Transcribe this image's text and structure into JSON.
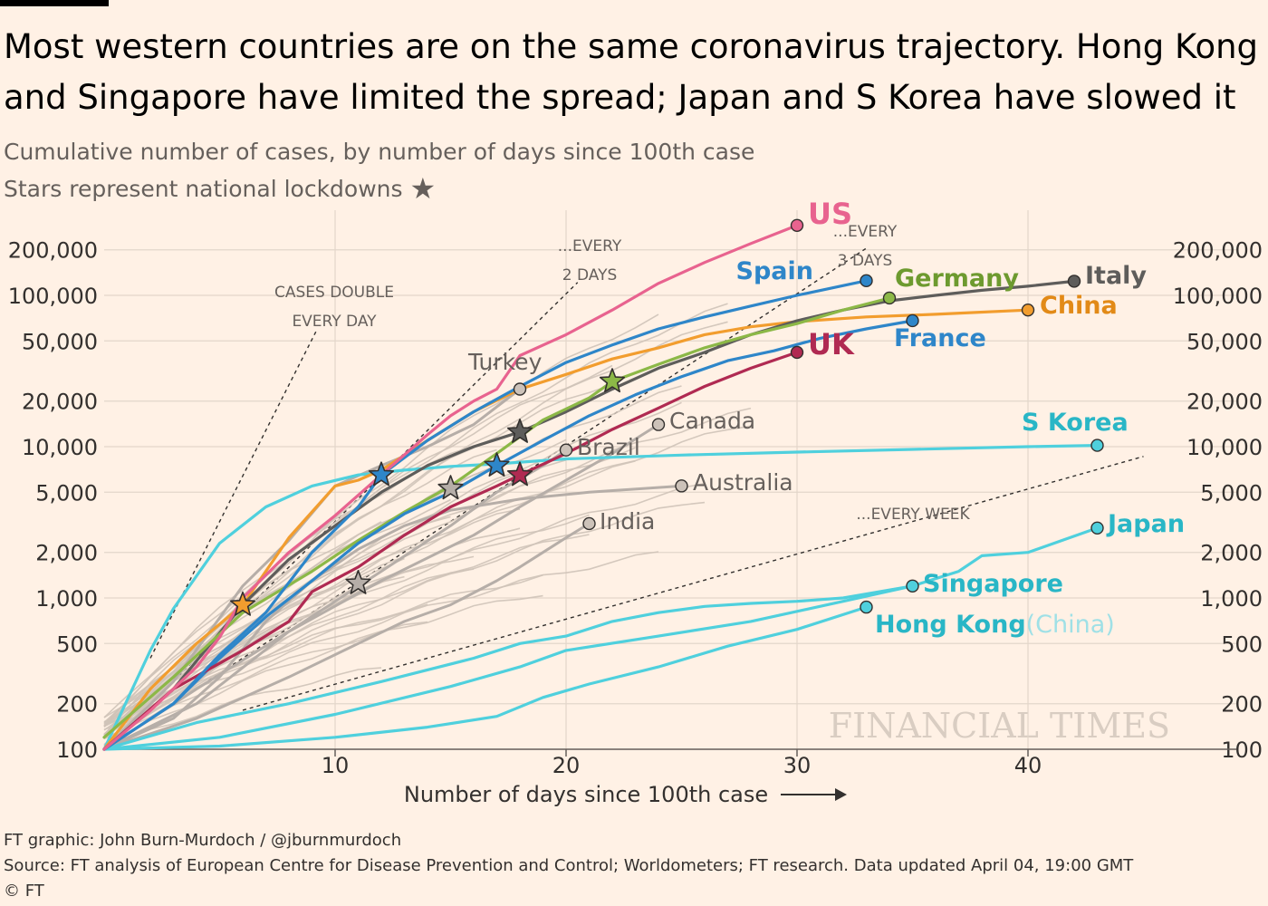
{
  "title": "Most western countries are on the same coronavirus trajectory. Hong Kong and Singapore have limited the spread; Japan and S Korea have slowed it",
  "subtitle": {
    "line1": "Cumulative number of cases, by number of days since 100th case",
    "line2": "Stars represent national lockdowns"
  },
  "footer": {
    "credit": "FT graphic: John Burn-Murdoch / @jburnmurdoch",
    "source": "Source: FT analysis of European Centre for Disease Prevention and Control; Worldometers; FT research. Data updated April 04, 19:00 GMT",
    "copyright": "© FT"
  },
  "watermark": "FINANCIAL TIMES",
  "chart_data": {
    "type": "line",
    "title": "Most western countries are on the same coronavirus trajectory",
    "xlabel": "Number of days since 100th case",
    "ylabel": "Cumulative number of cases",
    "yscale": "log",
    "xlim": [
      0,
      47
    ],
    "ylim": [
      100,
      300000
    ],
    "xticks": [
      10,
      20,
      30,
      40
    ],
    "yticks": [
      100,
      200,
      500,
      1000,
      2000,
      5000,
      10000,
      20000,
      50000,
      100000,
      200000
    ],
    "ytick_labels": [
      "100",
      "200",
      "500",
      "1,000",
      "2,000",
      "5,000",
      "10,000",
      "20,000",
      "50,000",
      "100,000",
      "200,000"
    ],
    "reference_lines": [
      {
        "name": "CASES DOUBLE EVERY DAY",
        "label1": "CASES DOUBLE",
        "label2": "EVERY DAY",
        "doubling_days": 1
      },
      {
        "name": "EVERY 2 DAYS",
        "label1": "...EVERY",
        "label2": "2 DAYS",
        "doubling_days": 2
      },
      {
        "name": "EVERY 3 DAYS",
        "label1": "...EVERY",
        "label2": "3 DAYS",
        "doubling_days": 3
      },
      {
        "name": "EVERY WEEK",
        "label1": "...EVERY WEEK",
        "label2": "",
        "doubling_days": 7
      }
    ],
    "series": [
      {
        "name": "US",
        "label": "US",
        "color": "#e8638f",
        "end_marker": true,
        "points": [
          [
            0,
            100
          ],
          [
            2,
            180
          ],
          [
            4,
            350
          ],
          [
            5,
            550
          ],
          [
            6,
            1000
          ],
          [
            8,
            2000
          ],
          [
            10,
            3500
          ],
          [
            12,
            6500
          ],
          [
            14,
            12000
          ],
          [
            15,
            16000
          ],
          [
            16,
            20000
          ],
          [
            17,
            24000
          ],
          [
            18,
            40000
          ],
          [
            20,
            55000
          ],
          [
            22,
            80000
          ],
          [
            24,
            120000
          ],
          [
            26,
            165000
          ],
          [
            28,
            220000
          ],
          [
            30,
            290000
          ]
        ]
      },
      {
        "name": "Spain",
        "label": "Spain",
        "color": "#2e86c9",
        "end_marker": true,
        "points": [
          [
            0,
            100
          ],
          [
            3,
            200
          ],
          [
            5,
            420
          ],
          [
            7,
            800
          ],
          [
            9,
            2000
          ],
          [
            11,
            4000
          ],
          [
            12,
            6500
          ],
          [
            14,
            11000
          ],
          [
            16,
            17000
          ],
          [
            18,
            25000
          ],
          [
            20,
            36000
          ],
          [
            22,
            47000
          ],
          [
            24,
            60000
          ],
          [
            26,
            72000
          ],
          [
            28,
            85000
          ],
          [
            30,
            100000
          ],
          [
            33,
            125000
          ]
        ]
      },
      {
        "name": "Germany",
        "label": "Germany",
        "color": "#8cb847",
        "end_marker": true,
        "points": [
          [
            0,
            120
          ],
          [
            3,
            300
          ],
          [
            6,
            800
          ],
          [
            9,
            1500
          ],
          [
            11,
            2400
          ],
          [
            13,
            3700
          ],
          [
            15,
            5500
          ],
          [
            17,
            9000
          ],
          [
            19,
            15000
          ],
          [
            21,
            21000
          ],
          [
            22,
            27000
          ],
          [
            24,
            35000
          ],
          [
            26,
            45000
          ],
          [
            28,
            55000
          ],
          [
            30,
            65000
          ],
          [
            32,
            80000
          ],
          [
            34,
            96000
          ]
        ]
      },
      {
        "name": "Italy",
        "label": "Italy",
        "color": "#5e5d5b",
        "end_marker": true,
        "points": [
          [
            0,
            100
          ],
          [
            3,
            250
          ],
          [
            6,
            900
          ],
          [
            8,
            1800
          ],
          [
            10,
            3000
          ],
          [
            12,
            5000
          ],
          [
            14,
            7500
          ],
          [
            16,
            10000
          ],
          [
            18,
            12500
          ],
          [
            20,
            17000
          ],
          [
            22,
            24000
          ],
          [
            24,
            33000
          ],
          [
            26,
            42000
          ],
          [
            28,
            55000
          ],
          [
            30,
            68000
          ],
          [
            32,
            80000
          ],
          [
            34,
            92000
          ],
          [
            36,
            100000
          ],
          [
            38,
            108000
          ],
          [
            40,
            115000
          ],
          [
            42,
            124000
          ]
        ]
      },
      {
        "name": "China",
        "label": "China",
        "color": "#f29d2e",
        "end_marker": true,
        "points": [
          [
            0,
            100
          ],
          [
            2,
            250
          ],
          [
            4,
            500
          ],
          [
            6,
            900
          ],
          [
            8,
            2500
          ],
          [
            10,
            5500
          ],
          [
            11,
            6000
          ],
          [
            12,
            7000
          ],
          [
            14,
            11000
          ],
          [
            16,
            17000
          ],
          [
            18,
            24000
          ],
          [
            20,
            30000
          ],
          [
            22,
            38000
          ],
          [
            24,
            45000
          ],
          [
            26,
            55000
          ],
          [
            28,
            62000
          ],
          [
            30,
            67000
          ],
          [
            33,
            72000
          ],
          [
            36,
            75000
          ],
          [
            40,
            80000
          ]
        ]
      },
      {
        "name": "France",
        "label": "France",
        "color": "#2e86c9",
        "end_marker": true,
        "points": [
          [
            0,
            100
          ],
          [
            3,
            200
          ],
          [
            5,
            400
          ],
          [
            7,
            750
          ],
          [
            9,
            1300
          ],
          [
            11,
            2300
          ],
          [
            13,
            3600
          ],
          [
            15,
            5000
          ],
          [
            17,
            7500
          ],
          [
            19,
            11000
          ],
          [
            21,
            16000
          ],
          [
            23,
            22000
          ],
          [
            25,
            29000
          ],
          [
            27,
            37000
          ],
          [
            29,
            43000
          ],
          [
            31,
            52000
          ],
          [
            33,
            60000
          ],
          [
            35,
            68000
          ]
        ]
      },
      {
        "name": "UK",
        "label": "UK",
        "color": "#b02a52",
        "end_marker": true,
        "points": [
          [
            0,
            100
          ],
          [
            3,
            250
          ],
          [
            6,
            450
          ],
          [
            8,
            700
          ],
          [
            9,
            1100
          ],
          [
            11,
            1600
          ],
          [
            13,
            2600
          ],
          [
            15,
            4000
          ],
          [
            17,
            5500
          ],
          [
            18,
            6500
          ],
          [
            20,
            9000
          ],
          [
            22,
            13000
          ],
          [
            24,
            18000
          ],
          [
            26,
            25000
          ],
          [
            28,
            33000
          ],
          [
            30,
            42000
          ]
        ]
      },
      {
        "name": "S Korea",
        "label": "S Korea",
        "color": "#4fd0dd",
        "end_marker": true,
        "points": [
          [
            0,
            100
          ],
          [
            2,
            450
          ],
          [
            3,
            850
          ],
          [
            5,
            2300
          ],
          [
            7,
            4000
          ],
          [
            9,
            5500
          ],
          [
            11,
            6500
          ],
          [
            13,
            7000
          ],
          [
            15,
            7400
          ],
          [
            17,
            7700
          ],
          [
            20,
            8300
          ],
          [
            25,
            8800
          ],
          [
            30,
            9200
          ],
          [
            35,
            9600
          ],
          [
            40,
            10000
          ],
          [
            43,
            10200
          ]
        ]
      },
      {
        "name": "Japan",
        "label": "Japan",
        "color": "#4fd0dd",
        "end_marker": true,
        "points": [
          [
            0,
            100
          ],
          [
            5,
            120
          ],
          [
            10,
            170
          ],
          [
            15,
            260
          ],
          [
            18,
            350
          ],
          [
            20,
            450
          ],
          [
            24,
            560
          ],
          [
            28,
            700
          ],
          [
            32,
            950
          ],
          [
            35,
            1200
          ],
          [
            37,
            1500
          ],
          [
            38,
            1900
          ],
          [
            40,
            2000
          ],
          [
            43,
            2900
          ]
        ]
      },
      {
        "name": "Singapore",
        "label": "Singapore",
        "color": "#4fd0dd",
        "end_marker": true,
        "points": [
          [
            0,
            100
          ],
          [
            4,
            150
          ],
          [
            8,
            200
          ],
          [
            12,
            280
          ],
          [
            16,
            400
          ],
          [
            18,
            500
          ],
          [
            20,
            560
          ],
          [
            22,
            700
          ],
          [
            24,
            800
          ],
          [
            26,
            880
          ],
          [
            28,
            920
          ],
          [
            30,
            950
          ],
          [
            32,
            1000
          ],
          [
            35,
            1200
          ]
        ]
      },
      {
        "name": "Hong Kong",
        "label": "Hong Kong",
        "label_suffix": "(China)",
        "color": "#4fd0dd",
        "end_marker": true,
        "points": [
          [
            0,
            100
          ],
          [
            5,
            105
          ],
          [
            10,
            120
          ],
          [
            14,
            140
          ],
          [
            17,
            165
          ],
          [
            19,
            220
          ],
          [
            21,
            270
          ],
          [
            24,
            350
          ],
          [
            27,
            480
          ],
          [
            30,
            620
          ],
          [
            33,
            870
          ]
        ]
      },
      {
        "name": "Turkey",
        "label": "Turkey",
        "color": "#b6aea8",
        "end_marker": true,
        "points": [
          [
            0,
            100
          ],
          [
            3,
            280
          ],
          [
            6,
            1200
          ],
          [
            8,
            2400
          ],
          [
            10,
            5500
          ],
          [
            12,
            7500
          ],
          [
            14,
            10000
          ],
          [
            16,
            14000
          ],
          [
            18,
            24000
          ]
        ]
      },
      {
        "name": "Canada",
        "label": "Canada",
        "color": "#b6aea8",
        "end_marker": true,
        "points": [
          [
            0,
            100
          ],
          [
            4,
            200
          ],
          [
            8,
            600
          ],
          [
            12,
            1300
          ],
          [
            16,
            2600
          ],
          [
            18,
            4000
          ],
          [
            20,
            6000
          ],
          [
            22,
            9000
          ],
          [
            24,
            14000
          ]
        ]
      },
      {
        "name": "Brazil",
        "label": "Brazil",
        "color": "#b6aea8",
        "end_marker": true,
        "points": [
          [
            0,
            100
          ],
          [
            4,
            250
          ],
          [
            8,
            600
          ],
          [
            12,
            1500
          ],
          [
            15,
            3000
          ],
          [
            17,
            5000
          ],
          [
            19,
            7500
          ],
          [
            20,
            9500
          ]
        ]
      },
      {
        "name": "Australia",
        "label": "Australia",
        "color": "#b6aea8",
        "end_marker": true,
        "points": [
          [
            0,
            100
          ],
          [
            3,
            160
          ],
          [
            5,
            300
          ],
          [
            7,
            700
          ],
          [
            9,
            1300
          ],
          [
            11,
            2100
          ],
          [
            13,
            3000
          ],
          [
            15,
            3800
          ],
          [
            18,
            4500
          ],
          [
            21,
            5000
          ],
          [
            25,
            5500
          ]
        ]
      },
      {
        "name": "India",
        "label": "India",
        "color": "#b6aea8",
        "end_marker": true,
        "points": [
          [
            0,
            100
          ],
          [
            4,
            160
          ],
          [
            8,
            300
          ],
          [
            11,
            500
          ],
          [
            13,
            700
          ],
          [
            15,
            900
          ],
          [
            17,
            1300
          ],
          [
            18,
            1600
          ],
          [
            19,
            2000
          ],
          [
            20,
            2500
          ],
          [
            21,
            3100
          ]
        ]
      }
    ],
    "lockdowns": [
      {
        "country": "China",
        "day": 6,
        "value": 900,
        "color": "#f29d2e"
      },
      {
        "country": "Spain",
        "day": 12,
        "value": 6500,
        "color": "#2e86c9"
      },
      {
        "country": "France",
        "day": 17,
        "value": 7500,
        "color": "#2e86c9"
      },
      {
        "country": "UK",
        "day": 18,
        "value": 6500,
        "color": "#b02a52"
      },
      {
        "country": "Germany",
        "day": 22,
        "value": 27000,
        "color": "#8cb847"
      },
      {
        "country": "Italy",
        "day": 18,
        "value": 12500,
        "color": "#5e5d5b"
      },
      {
        "country": "Other",
        "day": 15,
        "value": 5300,
        "color": "#b6aea8"
      },
      {
        "country": "Other",
        "day": 11,
        "value": 1250,
        "color": "#b6aea8"
      }
    ]
  }
}
